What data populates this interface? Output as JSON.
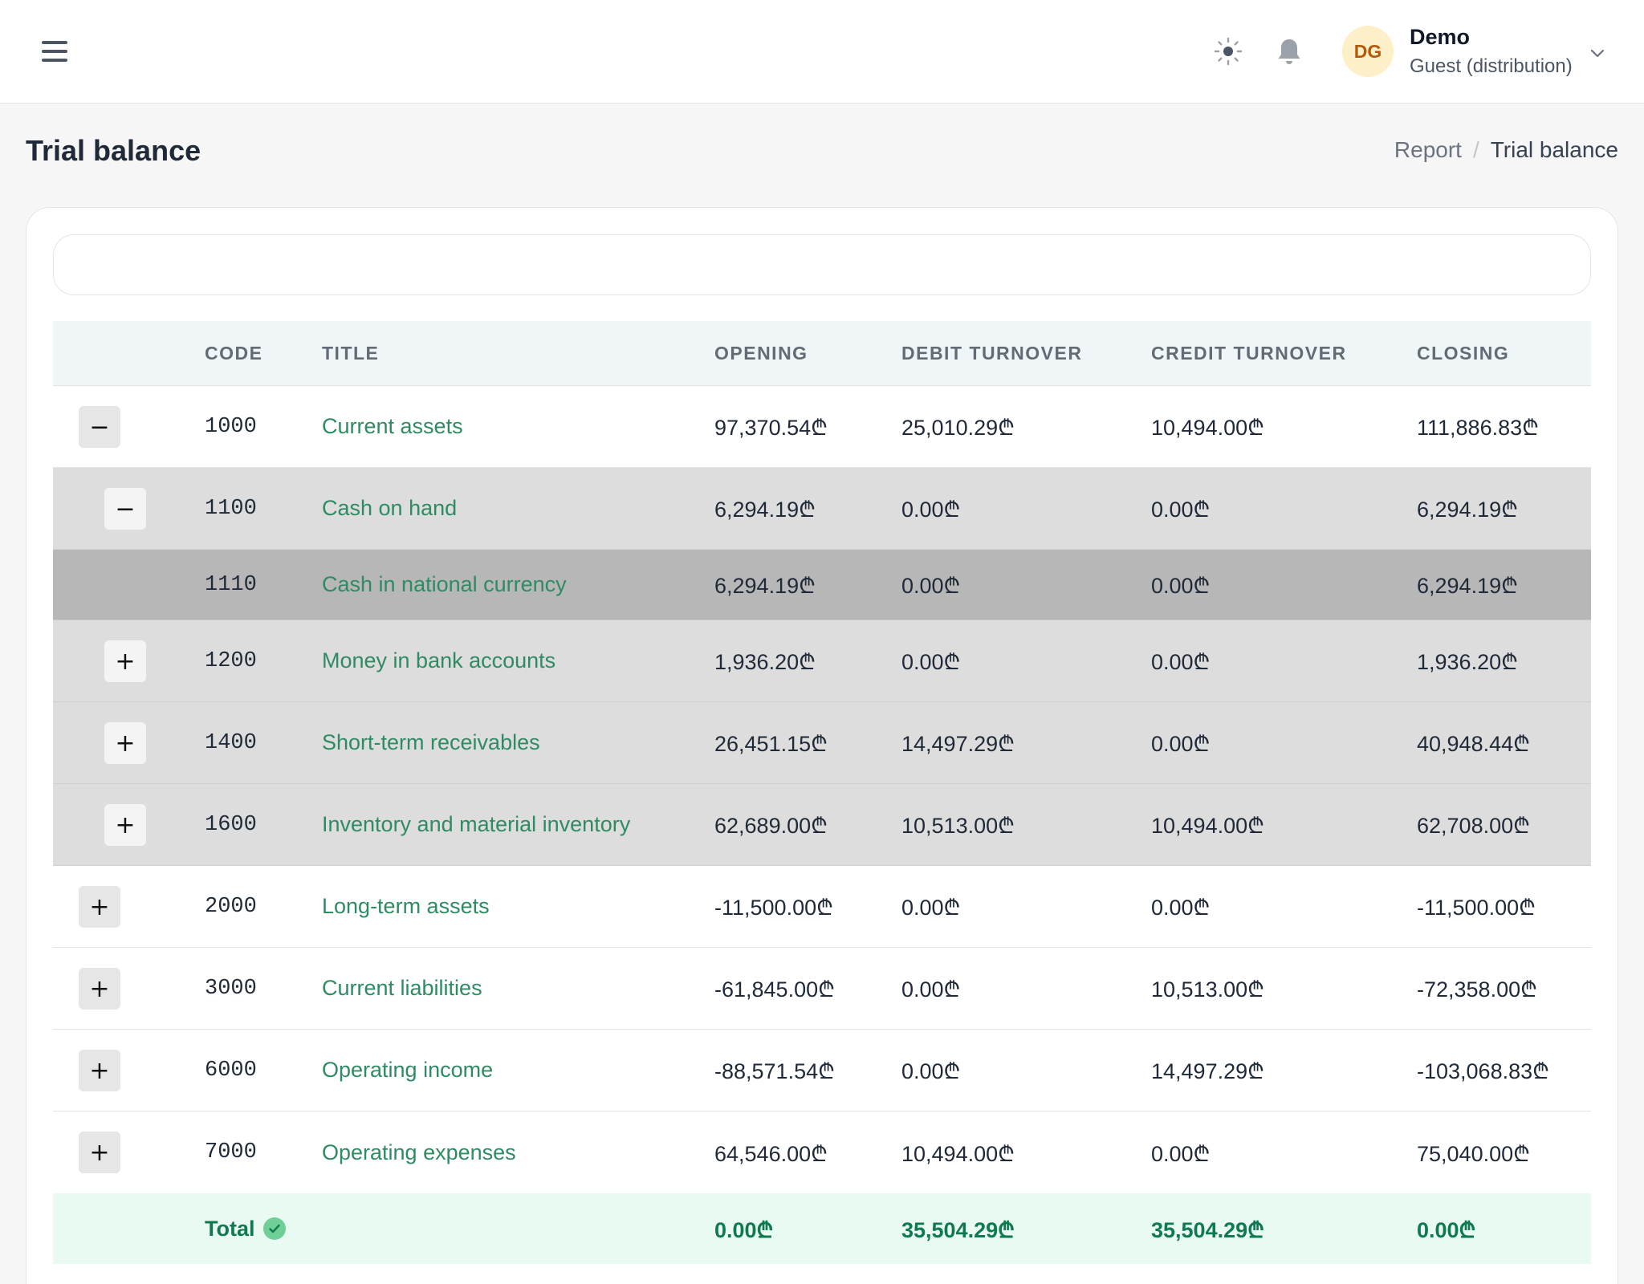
{
  "header": {
    "user_initials": "DG",
    "user_name": "Demo",
    "user_role": "Guest (distribution)"
  },
  "page": {
    "title": "Trial balance",
    "breadcrumb": [
      "Report",
      "/",
      "Trial balance"
    ]
  },
  "search": {
    "placeholder": "",
    "value": ""
  },
  "table": {
    "columns": [
      "CODE",
      "TITLE",
      "OPENING",
      "DEBIT TURNOVER",
      "CREDIT TURNOVER",
      "CLOSING"
    ],
    "rows": [
      {
        "toggle": "−",
        "code": "1000",
        "title": "Current assets",
        "opening": "97,370.54₾",
        "debit": "25,010.29₾",
        "credit": "10,494.00₾",
        "closing": "111,886.83₾"
      },
      {
        "toggle": "−",
        "code": "1100",
        "title": "Cash on hand",
        "opening": "6,294.19₾",
        "debit": "0.00₾",
        "credit": "0.00₾",
        "closing": "6,294.19₾"
      },
      {
        "toggle": "",
        "code": "1110",
        "title": "Cash in national currency",
        "opening": "6,294.19₾",
        "debit": "0.00₾",
        "credit": "0.00₾",
        "closing": "6,294.19₾"
      },
      {
        "toggle": "+",
        "code": "1200",
        "title": "Money in bank accounts",
        "opening": "1,936.20₾",
        "debit": "0.00₾",
        "credit": "0.00₾",
        "closing": "1,936.20₾"
      },
      {
        "toggle": "+",
        "code": "1400",
        "title": "Short-term receivables",
        "opening": "26,451.15₾",
        "debit": "14,497.29₾",
        "credit": "0.00₾",
        "closing": "40,948.44₾"
      },
      {
        "toggle": "+",
        "code": "1600",
        "title": "Inventory and material inventory",
        "opening": "62,689.00₾",
        "debit": "10,513.00₾",
        "credit": "10,494.00₾",
        "closing": "62,708.00₾"
      },
      {
        "toggle": "+",
        "code": "2000",
        "title": "Long-term assets",
        "opening": "-11,500.00₾",
        "debit": "0.00₾",
        "credit": "0.00₾",
        "closing": "-11,500.00₾"
      },
      {
        "toggle": "+",
        "code": "3000",
        "title": "Current liabilities",
        "opening": "-61,845.00₾",
        "debit": "0.00₾",
        "credit": "10,513.00₾",
        "closing": "-72,358.00₾"
      },
      {
        "toggle": "+",
        "code": "6000",
        "title": "Operating income",
        "opening": "-88,571.54₾",
        "debit": "0.00₾",
        "credit": "14,497.29₾",
        "closing": "-103,068.83₾"
      },
      {
        "toggle": "+",
        "code": "7000",
        "title": "Operating expenses",
        "opening": "64,546.00₾",
        "debit": "10,494.00₾",
        "credit": "0.00₾",
        "closing": "75,040.00₾"
      }
    ],
    "total": {
      "label": "Total",
      "opening": "0.00₾",
      "debit": "35,504.29₾",
      "credit": "35,504.29₾",
      "closing": "0.00₾"
    }
  },
  "colors": {
    "accent_green": "#2e8b62",
    "total_green": "#0f7a4f",
    "total_bg": "#e8faf2",
    "avatar_bg": "#fdf0c8",
    "avatar_text": "#b25a0c"
  },
  "icons": [
    "hamburger-icon",
    "sun-icon",
    "bell-icon",
    "chevron-down-icon",
    "check-circle-icon"
  ]
}
